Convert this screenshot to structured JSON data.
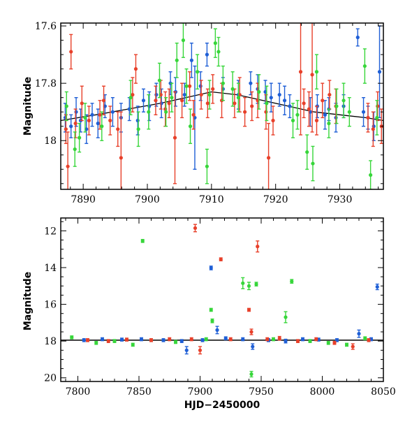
{
  "chart_data": [
    {
      "type": "scatter",
      "panel": "top",
      "xlabel": "",
      "ylabel": "Magnitude",
      "xlim": [
        7886.5,
        7936.8
      ],
      "ylim": [
        18.17,
        17.59
      ],
      "y_inverted": true,
      "x_ticks": [
        7890,
        7900,
        7910,
        7920,
        7930
      ],
      "y_ticks": [
        17.6,
        17.8,
        18
      ],
      "grid": false,
      "legend": "none",
      "colors": {
        "blue": "#1f5fd6",
        "red": "#e8402a",
        "green": "#37d63a",
        "model_line": "#000000"
      },
      "model_curve": [
        [
          7886.5,
          17.93
        ],
        [
          7892,
          17.91
        ],
        [
          7897,
          17.89
        ],
        [
          7902,
          17.87
        ],
        [
          7906,
          17.85
        ],
        [
          7910,
          17.83
        ],
        [
          7914,
          17.84
        ],
        [
          7918,
          17.86
        ],
        [
          7922,
          17.88
        ],
        [
          7926,
          17.9
        ],
        [
          7930,
          17.91
        ],
        [
          7934,
          17.92
        ],
        [
          7936.8,
          17.93
        ]
      ],
      "series": [
        {
          "color": "blue",
          "points": [
            [
              7887.2,
              17.92,
              0.05
            ],
            [
              7888.1,
              17.95,
              0.04
            ],
            [
              7888.9,
              17.9,
              0.05
            ],
            [
              7889.6,
              17.93,
              0.04
            ],
            [
              7890.5,
              17.96,
              0.05
            ],
            [
              7891.4,
              17.91,
              0.04
            ],
            [
              7892.3,
              17.94,
              0.05
            ],
            [
              7893.4,
              17.88,
              0.04
            ],
            [
              7894.6,
              17.9,
              0.05
            ],
            [
              7895.9,
              17.92,
              0.05
            ],
            [
              7897.2,
              17.89,
              0.04
            ],
            [
              7898.5,
              17.93,
              0.05
            ],
            [
              7899.4,
              17.86,
              0.04
            ],
            [
              7900.3,
              17.88,
              0.05
            ],
            [
              7901.4,
              17.84,
              0.04
            ],
            [
              7902.2,
              17.87,
              0.05
            ],
            [
              7903.6,
              17.8,
              0.04
            ],
            [
              7904.4,
              17.83,
              0.05
            ],
            [
              7905.8,
              17.84,
              0.04
            ],
            [
              7906.9,
              17.72,
              0.06
            ],
            [
              7907.4,
              17.92,
              0.18
            ],
            [
              7908.3,
              17.81,
              0.05
            ],
            [
              7909.3,
              17.7,
              0.04
            ],
            [
              7911.8,
              17.82,
              0.04
            ],
            [
              7914.2,
              17.84,
              0.05
            ],
            [
              7916.1,
              17.8,
              0.04
            ],
            [
              7917.2,
              17.82,
              0.05
            ],
            [
              7918.4,
              17.83,
              0.04
            ],
            [
              7919.3,
              17.85,
              0.05
            ],
            [
              7920.6,
              17.84,
              0.04
            ],
            [
              7921.4,
              17.86,
              0.05
            ],
            [
              7922.2,
              17.88,
              0.04
            ],
            [
              7925.4,
              17.9,
              0.05
            ],
            [
              7926.5,
              17.88,
              0.04
            ],
            [
              7927.7,
              17.91,
              0.05
            ],
            [
              7928.3,
              17.89,
              0.04
            ],
            [
              7929.4,
              17.92,
              0.05
            ],
            [
              7930.6,
              17.88,
              0.04
            ],
            [
              7932.8,
              17.64,
              0.03
            ],
            [
              7933.7,
              17.9,
              0.05
            ],
            [
              7934.4,
              17.92,
              0.04
            ],
            [
              7935.3,
              17.95,
              0.05
            ],
            [
              7936.2,
              17.76,
              0.16
            ]
          ]
        },
        {
          "color": "red",
          "points": [
            [
              7887.3,
              17.96,
              0.05
            ],
            [
              7887.6,
              18.09,
              0.12
            ],
            [
              7888.1,
              17.69,
              0.06
            ],
            [
              7888.8,
              17.94,
              0.05
            ],
            [
              7889.8,
              17.87,
              0.06
            ],
            [
              7890.9,
              17.93,
              0.05
            ],
            [
              7892.6,
              17.91,
              0.05
            ],
            [
              7893.2,
              17.86,
              0.05
            ],
            [
              7894.2,
              17.93,
              0.05
            ],
            [
              7895.4,
              17.96,
              0.06
            ],
            [
              7895.9,
              18.06,
              0.16
            ],
            [
              7897.7,
              17.84,
              0.06
            ],
            [
              7898.2,
              17.75,
              0.05
            ],
            [
              7901.3,
              17.86,
              0.05
            ],
            [
              7902.1,
              17.84,
              0.05
            ],
            [
              7902.8,
              17.89,
              0.06
            ],
            [
              7903.4,
              17.87,
              0.05
            ],
            [
              7904.3,
              17.99,
              0.16
            ],
            [
              7905.4,
              17.86,
              0.06
            ],
            [
              7906.6,
              17.81,
              0.05
            ],
            [
              7907.2,
              17.91,
              0.05
            ],
            [
              7908.4,
              17.84,
              0.05
            ],
            [
              7909.4,
              17.87,
              0.05
            ],
            [
              7910.2,
              17.82,
              0.05
            ],
            [
              7911.6,
              17.86,
              0.06
            ],
            [
              7913.6,
              17.87,
              0.05
            ],
            [
              7914.4,
              17.84,
              0.06
            ],
            [
              7915.2,
              17.9,
              0.05
            ],
            [
              7916.3,
              17.88,
              0.05
            ],
            [
              7917.2,
              17.86,
              0.06
            ],
            [
              7918.5,
              17.9,
              0.06
            ],
            [
              7918.9,
              18.06,
              0.12
            ],
            [
              7919.6,
              17.93,
              0.05
            ],
            [
              7923.9,
              17.76,
              0.22
            ],
            [
              7924.4,
              17.87,
              0.05
            ],
            [
              7925.2,
              17.89,
              0.06
            ],
            [
              7925.7,
              17.77,
              0.2
            ],
            [
              7926.4,
              17.93,
              0.05
            ],
            [
              7927.3,
              17.86,
              0.06
            ],
            [
              7928.4,
              17.84,
              0.05
            ],
            [
              7929.4,
              17.88,
              0.06
            ],
            [
              7934.4,
              17.92,
              0.05
            ],
            [
              7935.2,
              17.96,
              0.06
            ],
            [
              7935.9,
              17.88,
              0.05
            ],
            [
              7936.5,
              17.95,
              0.06
            ]
          ]
        },
        {
          "color": "green",
          "points": [
            [
              7887.4,
              17.88,
              0.05
            ],
            [
              7888.7,
              18.03,
              0.06
            ],
            [
              7889.4,
              17.99,
              0.05
            ],
            [
              7890.3,
              17.92,
              0.05
            ],
            [
              7892.9,
              17.95,
              0.05
            ],
            [
              7897.4,
              17.85,
              0.06
            ],
            [
              7898.6,
              17.96,
              0.06
            ],
            [
              7900.2,
              17.9,
              0.06
            ],
            [
              7901.9,
              17.79,
              0.06
            ],
            [
              7902.9,
              17.9,
              0.05
            ],
            [
              7903.8,
              17.85,
              0.05
            ],
            [
              7904.6,
              17.72,
              0.06
            ],
            [
              7905.6,
              17.65,
              0.06
            ],
            [
              7906.1,
              17.81,
              0.06
            ],
            [
              7906.7,
              17.95,
              0.06
            ],
            [
              7907.8,
              17.76,
              0.06
            ],
            [
              7909.3,
              18.09,
              0.06
            ],
            [
              7909.7,
              17.84,
              0.05
            ],
            [
              7910.6,
              17.66,
              0.05
            ],
            [
              7911.1,
              17.69,
              0.05
            ],
            [
              7911.8,
              17.8,
              0.06
            ],
            [
              7913.3,
              17.82,
              0.06
            ],
            [
              7914.2,
              17.85,
              0.05
            ],
            [
              7917.4,
              17.83,
              0.06
            ],
            [
              7918.6,
              17.87,
              0.06
            ],
            [
              7922.7,
              17.93,
              0.06
            ],
            [
              7923.4,
              17.91,
              0.05
            ],
            [
              7924.9,
              18.04,
              0.06
            ],
            [
              7925.8,
              18.08,
              0.06
            ],
            [
              7926.4,
              17.76,
              0.06
            ],
            [
              7928.3,
              17.94,
              0.05
            ],
            [
              7929.5,
              17.88,
              0.06
            ],
            [
              7930.6,
              17.86,
              0.06
            ],
            [
              7931.5,
              17.9,
              0.05
            ],
            [
              7933.9,
              17.74,
              0.06
            ],
            [
              7934.8,
              18.12,
              0.05
            ],
            [
              7935.8,
              17.92,
              0.06
            ]
          ]
        }
      ]
    },
    {
      "type": "scatter",
      "panel": "bottom",
      "xlabel": "HJD−2450000",
      "ylabel": "Magnitude",
      "xlim": [
        7786,
        8050
      ],
      "ylim": [
        20.2,
        11.3
      ],
      "y_inverted": true,
      "x_ticks": [
        7800,
        7850,
        7900,
        7950,
        8000,
        8050
      ],
      "y_ticks": [
        12,
        14,
        16,
        18,
        20
      ],
      "grid": false,
      "legend": "none",
      "reference_line": 17.95,
      "colors": {
        "blue": "#1f5fd6",
        "red": "#e8402a",
        "green": "#37d63a",
        "model_line": "#000000"
      },
      "series": [
        {
          "color": "blue",
          "points": [
            [
              7805,
              17.95,
              0.08
            ],
            [
              7820,
              17.9,
              0.08
            ],
            [
              7836,
              17.92,
              0.08
            ],
            [
              7852,
              17.9,
              0.08
            ],
            [
              7870,
              17.95,
              0.08
            ],
            [
              7885,
              18.0,
              0.08
            ],
            [
              7889,
              18.5,
              0.2
            ],
            [
              7902,
              17.95,
              0.08
            ],
            [
              7909,
              14.02,
              0.1
            ],
            [
              7914,
              17.4,
              0.2
            ],
            [
              7921,
              17.85,
              0.08
            ],
            [
              7935,
              17.9,
              0.08
            ],
            [
              7943,
              18.3,
              0.15
            ],
            [
              7956,
              17.95,
              0.08
            ],
            [
              7970,
              18.0,
              0.1
            ],
            [
              7984,
              17.9,
              0.08
            ],
            [
              7997,
              17.92,
              0.08
            ],
            [
              8012,
              17.95,
              0.08
            ],
            [
              8030,
              17.6,
              0.2
            ],
            [
              8040,
              17.9,
              0.08
            ],
            [
              8045,
              15.05,
              0.15
            ]
          ]
        },
        {
          "color": "red",
          "points": [
            [
              7808,
              17.95,
              0.08
            ],
            [
              7825,
              18.0,
              0.08
            ],
            [
              7840,
              17.92,
              0.08
            ],
            [
              7860,
              17.95,
              0.08
            ],
            [
              7875,
              17.9,
              0.08
            ],
            [
              7893,
              17.9,
              0.08
            ],
            [
              7896,
              11.85,
              0.2
            ],
            [
              7900,
              18.5,
              0.2
            ],
            [
              7917,
              13.55,
              0.08
            ],
            [
              7925,
              17.9,
              0.08
            ],
            [
              7940,
              16.3,
              0.08
            ],
            [
              7942,
              17.5,
              0.15
            ],
            [
              7947,
              12.85,
              0.3
            ],
            [
              7955,
              17.9,
              0.08
            ],
            [
              7965,
              17.85,
              0.1
            ],
            [
              7980,
              18.0,
              0.08
            ],
            [
              7995,
              17.9,
              0.08
            ],
            [
              8010,
              18.1,
              0.08
            ],
            [
              8025,
              18.3,
              0.15
            ],
            [
              8038,
              17.95,
              0.08
            ]
          ]
        },
        {
          "color": "green",
          "points": [
            [
              7795,
              17.8,
              0.08
            ],
            [
              7815,
              18.1,
              0.08
            ],
            [
              7830,
              18.0,
              0.08
            ],
            [
              7845,
              18.2,
              0.08
            ],
            [
              7853,
              12.55,
              0.08
            ],
            [
              7880,
              18.05,
              0.08
            ],
            [
              7905,
              17.9,
              0.08
            ],
            [
              7909,
              16.3,
              0.08
            ],
            [
              7910,
              16.9,
              0.1
            ],
            [
              7935,
              14.85,
              0.3
            ],
            [
              7940,
              15.0,
              0.2
            ],
            [
              7942,
              19.8,
              0.15
            ],
            [
              7946,
              14.9,
              0.1
            ],
            [
              7960,
              17.9,
              0.08
            ],
            [
              7970,
              16.7,
              0.3
            ],
            [
              7975,
              14.75,
              0.1
            ],
            [
              7990,
              18.0,
              0.08
            ],
            [
              8005,
              18.1,
              0.08
            ],
            [
              8020,
              18.2,
              0.08
            ],
            [
              8035,
              17.85,
              0.08
            ]
          ]
        }
      ]
    }
  ]
}
